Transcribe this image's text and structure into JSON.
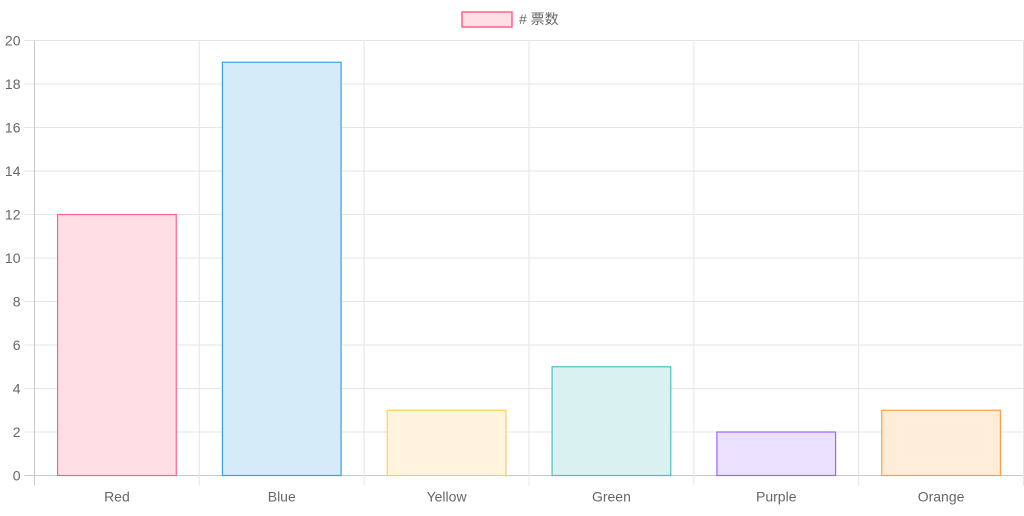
{
  "chart_data": {
    "type": "bar",
    "categories": [
      "Red",
      "Blue",
      "Yellow",
      "Green",
      "Purple",
      "Orange"
    ],
    "series": [
      {
        "name": "# 票数",
        "values": [
          12,
          19,
          3,
          5,
          2,
          3
        ],
        "fill_colors": [
          "#ffdfe5",
          "#d6ebf9",
          "#fff4dd",
          "#daf1f1",
          "#ebe0fe",
          "#ffecd9"
        ],
        "border_colors": [
          "#ff6384",
          "#36a2eb",
          "#ffce56",
          "#4bc0c0",
          "#9966ff",
          "#ff9f40"
        ]
      }
    ],
    "yticks": [
      "0",
      "2",
      "4",
      "6",
      "8",
      "10",
      "12",
      "14",
      "16",
      "18",
      "20"
    ],
    "ylim": [
      0,
      20
    ],
    "grid": true,
    "legend_position": "top"
  }
}
